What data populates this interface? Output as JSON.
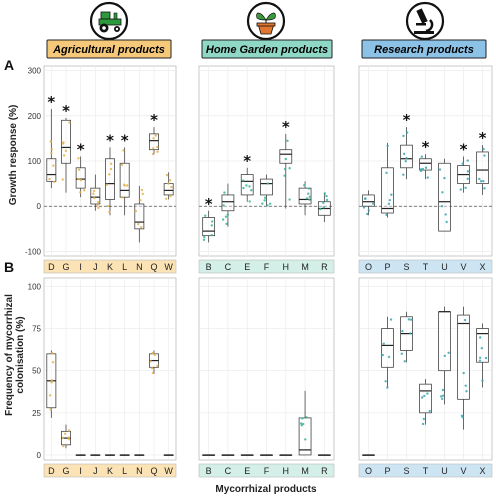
{
  "panel_labels": [
    "A",
    "B"
  ],
  "y_axis_label_a": "Growth response (%)",
  "y_axis_label_b_line1": "Frequency of mycorrhizal",
  "y_axis_label_b_line2": "colonisation (%)",
  "x_axis_label": "Mycorrhizal products",
  "colors": {
    "agri_header": "#f5c979",
    "garden_header": "#8fd8c5",
    "research_header": "#8cc2e6",
    "agri_strip": "#fbe3b5",
    "garden_strip": "#d3efe7",
    "research_strip": "#cde4f3",
    "agri_point": "#e5b24a",
    "garden_point": "#3bb39a",
    "research_point": "#3aa6b0",
    "grid": "#ebebeb"
  },
  "chart_data": {
    "type": "box",
    "groups": [
      {
        "id": "agri",
        "title": "Agricultural products",
        "icon": "tractor-icon",
        "categories": [
          "D",
          "G",
          "I",
          "J",
          "K",
          "L",
          "N",
          "Q",
          "W"
        ]
      },
      {
        "id": "garden",
        "title": "Home Garden products",
        "icon": "potted-plant-icon",
        "categories": [
          "B",
          "C",
          "E",
          "F",
          "H",
          "M",
          "R"
        ]
      },
      {
        "id": "research",
        "title": "Research products",
        "icon": "microscope-icon",
        "categories": [
          "O",
          "P",
          "S",
          "T",
          "U",
          "V",
          "X"
        ]
      }
    ],
    "panel_a": {
      "ylim": [
        -110,
        310
      ],
      "yticks": [
        -100,
        0,
        100,
        200,
        300
      ],
      "reference_line": 0,
      "boxes": {
        "agri": [
          {
            "cat": "D",
            "min": 40,
            "q1": 55,
            "median": 70,
            "q3": 105,
            "max": 215,
            "sig": true
          },
          {
            "cat": "G",
            "min": 30,
            "q1": 95,
            "median": 130,
            "q3": 190,
            "max": 195,
            "sig": true
          },
          {
            "cat": "I",
            "min": 20,
            "q1": 40,
            "median": 60,
            "q3": 85,
            "max": 110,
            "sig": true
          },
          {
            "cat": "J",
            "min": -10,
            "q1": 5,
            "median": 20,
            "q3": 40,
            "max": 70,
            "sig": false
          },
          {
            "cat": "K",
            "min": -20,
            "q1": 15,
            "median": 50,
            "q3": 105,
            "max": 130,
            "sig": true
          },
          {
            "cat": "L",
            "min": -20,
            "q1": 20,
            "median": 35,
            "q3": 95,
            "max": 130,
            "sig": true
          },
          {
            "cat": "N",
            "min": -80,
            "q1": -50,
            "median": -35,
            "q3": 5,
            "max": 45,
            "sig": false
          },
          {
            "cat": "Q",
            "min": 115,
            "q1": 125,
            "median": 145,
            "q3": 160,
            "max": 175,
            "sig": true
          },
          {
            "cat": "W",
            "min": 15,
            "q1": 25,
            "median": 35,
            "q3": 50,
            "max": 75,
            "sig": false
          }
        ],
        "garden": [
          {
            "cat": "B",
            "min": -80,
            "q1": -65,
            "median": -55,
            "q3": -25,
            "max": -10,
            "sig": true
          },
          {
            "cat": "C",
            "min": -45,
            "q1": -10,
            "median": 10,
            "q3": 25,
            "max": 50,
            "sig": false
          },
          {
            "cat": "E",
            "min": 10,
            "q1": 25,
            "median": 55,
            "q3": 70,
            "max": 85,
            "sig": true
          },
          {
            "cat": "F",
            "min": 0,
            "q1": 25,
            "median": 50,
            "q3": 60,
            "max": 70,
            "sig": false
          },
          {
            "cat": "H",
            "min": -5,
            "q1": 95,
            "median": 115,
            "q3": 125,
            "max": 160,
            "sig": true
          },
          {
            "cat": "M",
            "min": -20,
            "q1": 5,
            "median": 15,
            "q3": 40,
            "max": 55,
            "sig": false
          },
          {
            "cat": "R",
            "min": -35,
            "q1": -20,
            "median": -5,
            "q3": 10,
            "max": 30,
            "sig": false
          }
        ],
        "research": [
          {
            "cat": "O",
            "min": -20,
            "q1": 0,
            "median": 10,
            "q3": 25,
            "max": 35,
            "sig": false
          },
          {
            "cat": "P",
            "min": -25,
            "q1": -15,
            "median": -5,
            "q3": 85,
            "max": 140,
            "sig": false
          },
          {
            "cat": "S",
            "min": 60,
            "q1": 85,
            "median": 105,
            "q3": 135,
            "max": 175,
            "sig": true
          },
          {
            "cat": "T",
            "min": 60,
            "q1": 80,
            "median": 95,
            "q3": 105,
            "max": 115,
            "sig": true
          },
          {
            "cat": "U",
            "min": -55,
            "q1": -55,
            "median": 10,
            "q3": 95,
            "max": 105,
            "sig": false
          },
          {
            "cat": "V",
            "min": 30,
            "q1": 50,
            "median": 70,
            "q3": 90,
            "max": 110,
            "sig": true
          },
          {
            "cat": "X",
            "min": 25,
            "q1": 50,
            "median": 80,
            "q3": 120,
            "max": 135,
            "sig": true
          }
        ]
      }
    },
    "panel_b": {
      "ylim": [
        -3,
        105
      ],
      "yticks": [
        0,
        25,
        50,
        75,
        100
      ],
      "boxes": {
        "agri": [
          {
            "cat": "D",
            "min": 22,
            "q1": 28,
            "median": 44,
            "q3": 60,
            "max": 62
          },
          {
            "cat": "G",
            "min": 4,
            "q1": 6,
            "median": 10,
            "q3": 14,
            "max": 18
          },
          {
            "cat": "I",
            "min": 0,
            "q1": 0,
            "median": 0,
            "q3": 0,
            "max": 0
          },
          {
            "cat": "J",
            "min": 0,
            "q1": 0,
            "median": 0,
            "q3": 0,
            "max": 0
          },
          {
            "cat": "K",
            "min": 0,
            "q1": 0,
            "median": 0,
            "q3": 0,
            "max": 0
          },
          {
            "cat": "L",
            "min": 0,
            "q1": 0,
            "median": 0,
            "q3": 0,
            "max": 0
          },
          {
            "cat": "N",
            "min": 0,
            "q1": 0,
            "median": 0,
            "q3": 0,
            "max": 0
          },
          {
            "cat": "Q",
            "min": 48,
            "q1": 52,
            "median": 56,
            "q3": 60,
            "max": 62
          },
          {
            "cat": "W",
            "min": 0,
            "q1": 0,
            "median": 0,
            "q3": 0,
            "max": 0
          }
        ],
        "garden": [
          {
            "cat": "B",
            "min": 0,
            "q1": 0,
            "median": 0,
            "q3": 0,
            "max": 0
          },
          {
            "cat": "C",
            "min": 0,
            "q1": 0,
            "median": 0,
            "q3": 0,
            "max": 0
          },
          {
            "cat": "E",
            "min": 0,
            "q1": 0,
            "median": 0,
            "q3": 0,
            "max": 0
          },
          {
            "cat": "F",
            "min": 0,
            "q1": 0,
            "median": 0,
            "q3": 0,
            "max": 0
          },
          {
            "cat": "H",
            "min": 0,
            "q1": 0,
            "median": 0,
            "q3": 0,
            "max": 0
          },
          {
            "cat": "M",
            "min": 0,
            "q1": 0,
            "median": 3,
            "q3": 22,
            "max": 38
          },
          {
            "cat": "R",
            "min": 0,
            "q1": 0,
            "median": 0,
            "q3": 0,
            "max": 0
          }
        ],
        "research": [
          {
            "cat": "O",
            "min": 0,
            "q1": 0,
            "median": 0,
            "q3": 0,
            "max": 0
          },
          {
            "cat": "P",
            "min": 40,
            "q1": 52,
            "median": 65,
            "q3": 75,
            "max": 82
          },
          {
            "cat": "S",
            "min": 55,
            "q1": 62,
            "median": 72,
            "q3": 82,
            "max": 85
          },
          {
            "cat": "T",
            "min": 18,
            "q1": 25,
            "median": 38,
            "q3": 42,
            "max": 45
          },
          {
            "cat": "U",
            "min": 30,
            "q1": 50,
            "median": 85,
            "q3": 85,
            "max": 88
          },
          {
            "cat": "V",
            "min": 15,
            "q1": 33,
            "median": 78,
            "q3": 83,
            "max": 88
          },
          {
            "cat": "X",
            "min": 40,
            "q1": 55,
            "median": 72,
            "q3": 75,
            "max": 78
          }
        ]
      }
    }
  }
}
